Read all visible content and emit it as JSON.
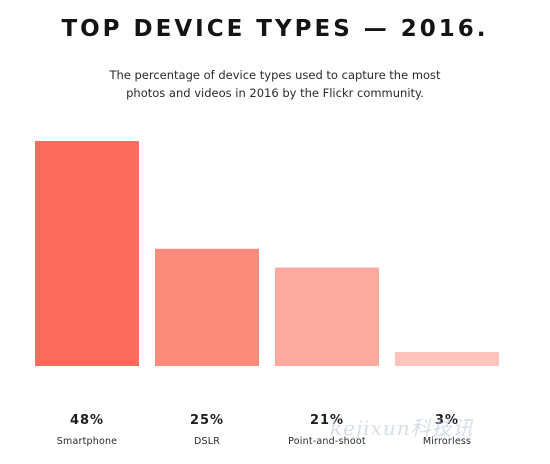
{
  "header": {
    "title": "TOP DEVICE TYPES — 2016.",
    "subtitle_line1": "The percentage of device types used to capture the most",
    "subtitle_line2": "photos and videos in 2016 by the Flickr community."
  },
  "colors": {
    "smartphone": "#fd6a5e",
    "dslr": "#fd8b7b",
    "point_and_shoot": "#fca9a0",
    "mirrorless": "#fcc4bd",
    "text": "#1b1b1b"
  },
  "watermark": {
    "text": "kejixun科技讯"
  },
  "chart_data": {
    "type": "bar",
    "title": "TOP DEVICE TYPES — 2016.",
    "categories": [
      "Smartphone",
      "DSLR",
      "Point-and-shoot",
      "Mirrorless"
    ],
    "values": [
      48,
      25,
      21,
      3
    ],
    "value_labels": [
      "48%",
      "25%",
      "21%",
      "3%"
    ],
    "unit": "%",
    "ylim": [
      0,
      48
    ],
    "grid": false,
    "legend": "none"
  }
}
